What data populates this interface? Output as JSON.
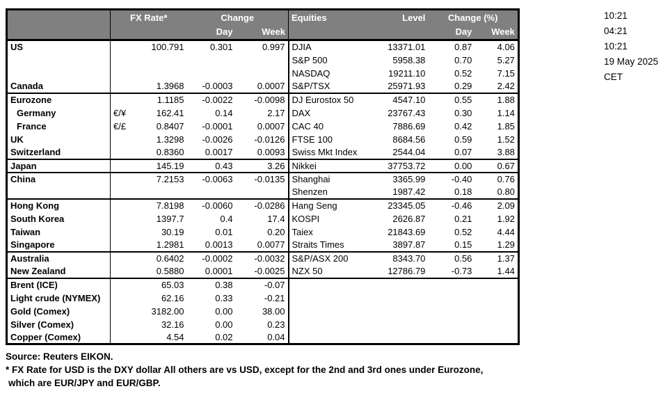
{
  "colors": {
    "header_bg": "#808080",
    "header_text": "#ffffff",
    "border": "#000000",
    "text": "#000000"
  },
  "header": {
    "fx_rate": "FX Rate*",
    "change": "Change",
    "day_left": "Day",
    "week_left": "Week",
    "equities": "Equities",
    "level": "Level",
    "change_pct": "Change (%)",
    "day_right": "Day",
    "week_right": "Week"
  },
  "timestamps": {
    "lines": [
      "10:21",
      "04:21",
      "10:21",
      "19 May 2025",
      "CET"
    ]
  },
  "footer": {
    "source": "Source:  Reuters EIKON.",
    "note_line1": "* FX Rate for USD is the DXY dollar  All others are vs USD, except for the 2nd and 3rd ones under Eurozone,",
    "note_line2": "which are EUR/JPY and EUR/GBP."
  },
  "table": {
    "columns": [
      {
        "key": "label",
        "cls": "c-label"
      },
      {
        "key": "sym",
        "cls": "c-sym"
      },
      {
        "key": "fx",
        "cls": "c-num"
      },
      {
        "key": "fx_day",
        "cls": "c-num"
      },
      {
        "key": "fx_week",
        "cls": "c-num"
      },
      {
        "key": "eq",
        "cls": "c-eq"
      },
      {
        "key": "level",
        "cls": "c-num"
      },
      {
        "key": "eq_day",
        "cls": "c-num"
      },
      {
        "key": "eq_week",
        "cls": "c-num"
      }
    ],
    "rows": [
      {
        "label": "US",
        "sym": "",
        "fx": "100.791",
        "fx_day": "0.301",
        "fx_week": "0.997",
        "eq": "DJIA",
        "level": "13371.01",
        "eq_day": "0.87",
        "eq_week": "4.06",
        "indent": false,
        "section_end": false
      },
      {
        "label": "",
        "sym": "",
        "fx": "",
        "fx_day": "",
        "fx_week": "",
        "eq": "S&P 500",
        "level": "5958.38",
        "eq_day": "0.70",
        "eq_week": "5.27",
        "indent": false,
        "section_end": false
      },
      {
        "label": "",
        "sym": "",
        "fx": "",
        "fx_day": "",
        "fx_week": "",
        "eq": "NASDAQ",
        "level": "19211.10",
        "eq_day": "0.52",
        "eq_week": "7.15",
        "indent": false,
        "section_end": false
      },
      {
        "label": "Canada",
        "sym": "",
        "fx": "1.3968",
        "fx_day": "-0.0003",
        "fx_week": "0.0007",
        "eq": "S&P/TSX",
        "level": "25971.93",
        "eq_day": "0.29",
        "eq_week": "2.42",
        "indent": false,
        "section_end": true
      },
      {
        "label": "Eurozone",
        "sym": "",
        "fx": "1.1185",
        "fx_day": "-0.0022",
        "fx_week": "-0.0098",
        "eq": "DJ Eurostox 50",
        "level": "4547.10",
        "eq_day": "0.55",
        "eq_week": "1.88",
        "indent": false,
        "section_end": false
      },
      {
        "label": "Germany",
        "sym": "€/¥",
        "fx": "162.41",
        "fx_day": "0.14",
        "fx_week": "2.17",
        "eq": "DAX",
        "level": "23767.43",
        "eq_day": "0.30",
        "eq_week": "1.14",
        "indent": true,
        "section_end": false
      },
      {
        "label": "France",
        "sym": "€/£",
        "fx": "0.8407",
        "fx_day": "-0.0001",
        "fx_week": "0.0007",
        "eq": "CAC 40",
        "level": "7886.69",
        "eq_day": "0.42",
        "eq_week": "1.85",
        "indent": true,
        "section_end": false
      },
      {
        "label": "UK",
        "sym": "",
        "fx": "1.3298",
        "fx_day": "-0.0026",
        "fx_week": "-0.0126",
        "eq": "FTSE 100",
        "level": "8684.56",
        "eq_day": "0.59",
        "eq_week": "1.52",
        "indent": false,
        "section_end": false
      },
      {
        "label": "Switzerland",
        "sym": "",
        "fx": "0.8360",
        "fx_day": "0.0017",
        "fx_week": "0.0093",
        "eq": "Swiss Mkt Index",
        "level": "2544.04",
        "eq_day": "0.07",
        "eq_week": "3.88",
        "indent": false,
        "section_end": true
      },
      {
        "label": "Japan",
        "sym": "",
        "fx": "145.19",
        "fx_day": "0.43",
        "fx_week": "3.26",
        "eq": "Nikkei",
        "level": "37753.72",
        "eq_day": "0.00",
        "eq_week": "0.67",
        "indent": false,
        "section_end": true
      },
      {
        "label": "China",
        "sym": "",
        "fx": "7.2153",
        "fx_day": "-0.0063",
        "fx_week": "-0.0135",
        "eq": "Shanghai",
        "level": "3365.99",
        "eq_day": "-0.40",
        "eq_week": "0.76",
        "indent": false,
        "section_end": false
      },
      {
        "label": "",
        "sym": "",
        "fx": "",
        "fx_day": "",
        "fx_week": "",
        "eq": "Shenzen",
        "level": "1987.42",
        "eq_day": "0.18",
        "eq_week": "0.80",
        "indent": false,
        "section_end": true
      },
      {
        "label": "Hong Kong",
        "sym": "",
        "fx": "7.8198",
        "fx_day": "-0.0060",
        "fx_week": "-0.0286",
        "eq": "Hang Seng",
        "level": "23345.05",
        "eq_day": "-0.46",
        "eq_week": "2.09",
        "indent": false,
        "section_end": false
      },
      {
        "label": "South Korea",
        "sym": "",
        "fx": "1397.7",
        "fx_day": "0.4",
        "fx_week": "17.4",
        "eq": "KOSPI",
        "level": "2626.87",
        "eq_day": "0.21",
        "eq_week": "1.92",
        "indent": false,
        "section_end": false
      },
      {
        "label": "Taiwan",
        "sym": "",
        "fx": "30.19",
        "fx_day": "0.01",
        "fx_week": "0.20",
        "eq": "Taiex",
        "level": "21843.69",
        "eq_day": "0.52",
        "eq_week": "4.44",
        "indent": false,
        "section_end": false
      },
      {
        "label": "Singapore",
        "sym": "",
        "fx": "1.2981",
        "fx_day": "0.0013",
        "fx_week": "0.0077",
        "eq": "Straits Times",
        "level": "3897.87",
        "eq_day": "0.15",
        "eq_week": "1.29",
        "indent": false,
        "section_end": true
      },
      {
        "label": "Australia",
        "sym": "",
        "fx": "0.6402",
        "fx_day": "-0.0002",
        "fx_week": "-0.0032",
        "eq": "S&P/ASX  200",
        "level": "8343.70",
        "eq_day": "0.56",
        "eq_week": "1.37",
        "indent": false,
        "section_end": false
      },
      {
        "label": "New Zealand",
        "sym": "",
        "fx": "0.5880",
        "fx_day": "0.0001",
        "fx_week": "-0.0025",
        "eq": "NZX 50",
        "level": "12786.79",
        "eq_day": "-0.73",
        "eq_week": "1.44",
        "indent": false,
        "section_end": true
      },
      {
        "label": "Brent (ICE)",
        "sym": "",
        "fx": "65.03",
        "fx_day": "0.38",
        "fx_week": "-0.07",
        "eq": "",
        "level": "",
        "eq_day": "",
        "eq_week": "",
        "indent": false,
        "section_end": false
      },
      {
        "label": "Light crude (NYMEX)",
        "sym": "",
        "fx": "62.16",
        "fx_day": "0.33",
        "fx_week": "-0.21",
        "eq": "",
        "level": "",
        "eq_day": "",
        "eq_week": "",
        "indent": false,
        "section_end": false
      },
      {
        "label": "Gold (Comex)",
        "sym": "",
        "fx": "3182.00",
        "fx_day": "0.00",
        "fx_week": "38.00",
        "eq": "",
        "level": "",
        "eq_day": "",
        "eq_week": "",
        "indent": false,
        "section_end": false
      },
      {
        "label": "Silver (Comex)",
        "sym": "",
        "fx": "32.16",
        "fx_day": "0.00",
        "fx_week": "0.23",
        "eq": "",
        "level": "",
        "eq_day": "",
        "eq_week": "",
        "indent": false,
        "section_end": false
      },
      {
        "label": "Copper (Comex)",
        "sym": "",
        "fx": "4.54",
        "fx_day": "0.02",
        "fx_week": "0.04",
        "eq": "",
        "level": "",
        "eq_day": "",
        "eq_week": "",
        "indent": false,
        "section_end": false
      }
    ]
  }
}
